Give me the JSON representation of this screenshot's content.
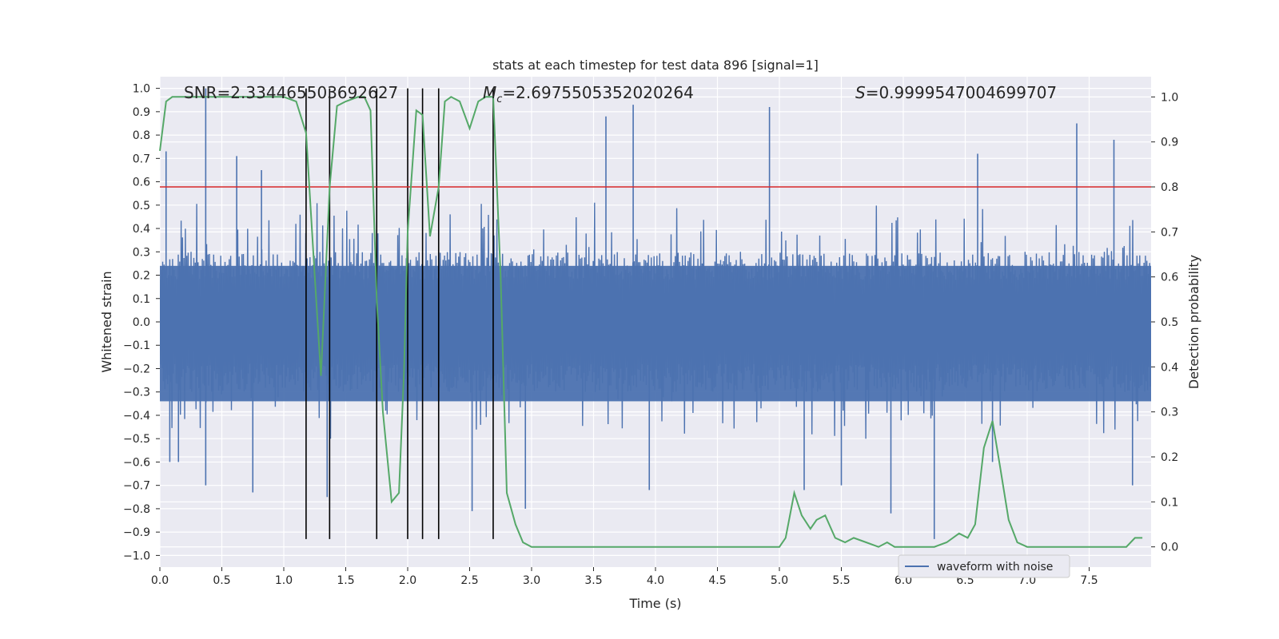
{
  "chart_data": {
    "type": "line",
    "title": "stats at each timestep for test data 896 [signal=1]",
    "xlabel": "Time (s)",
    "ylabel_left": "Whitened strain",
    "ylabel_right": "Detection probability",
    "xlim": [
      0.0,
      8.0
    ],
    "ylim_left": [
      -1.05,
      1.05
    ],
    "ylim_right": [
      -0.045,
      1.045
    ],
    "xticks": [
      0.0,
      0.5,
      1.0,
      1.5,
      2.0,
      2.5,
      3.0,
      3.5,
      4.0,
      4.5,
      5.0,
      5.5,
      6.0,
      6.5,
      7.0,
      7.5
    ],
    "xtick_labels": [
      "0.0",
      "0.5",
      "1.0",
      "1.5",
      "2.0",
      "2.5",
      "3.0",
      "3.5",
      "4.0",
      "4.5",
      "5.0",
      "5.5",
      "6.0",
      "6.5",
      "7.0",
      "7.5"
    ],
    "yticks_left": [
      1.0,
      0.9,
      0.8,
      0.7,
      0.6,
      0.5,
      0.4,
      0.3,
      0.2,
      0.1,
      0.0,
      -0.1,
      -0.2,
      -0.3,
      -0.4,
      -0.5,
      -0.6,
      -0.7,
      -0.8,
      -0.9,
      -1.0
    ],
    "ytick_labels_left": [
      "1.0",
      "0.9",
      "0.8",
      "0.7",
      "0.6",
      "0.5",
      "0.4",
      "0.3",
      "0.2",
      "0.1",
      "0.0",
      "−0.1",
      "−0.2",
      "−0.3",
      "−0.4",
      "−0.5",
      "−0.6",
      "−0.7",
      "−0.8",
      "−0.9",
      "−1.0"
    ],
    "yticks_right": [
      1.0,
      0.9,
      0.8,
      0.7,
      0.6,
      0.5,
      0.4,
      0.3,
      0.2,
      0.1,
      0.0
    ],
    "ytick_labels_right": [
      "1.0",
      "0.9",
      "0.8",
      "0.7",
      "0.6",
      "0.5",
      "0.4",
      "0.3",
      "0.2",
      "0.1",
      "0.0"
    ],
    "annotations": {
      "snr": "SNR=2.334465503692627",
      "mc_symbol": "M",
      "mc_sub": "c",
      "mc_value": "=2.6975505352020264",
      "s_symbol": "S",
      "s_value": "=0.9999547004699707"
    },
    "threshold": {
      "value": 0.8,
      "axis": "right",
      "color": "#d62728"
    },
    "event_markers_x": [
      1.18,
      1.37,
      1.75,
      2.0,
      2.12,
      2.25,
      2.69
    ],
    "event_marker_ylim": [
      -0.93,
      1.0
    ],
    "waveform": {
      "name": "waveform with noise",
      "color": "#4c72b0",
      "spikes": [
        {
          "x": 0.05,
          "y": 0.73
        },
        {
          "x": 0.08,
          "y": -0.6
        },
        {
          "x": 0.15,
          "y": -0.6
        },
        {
          "x": 0.37,
          "y": 1.0
        },
        {
          "x": 0.37,
          "y": -0.7
        },
        {
          "x": 0.62,
          "y": 0.71
        },
        {
          "x": 0.75,
          "y": -0.73
        },
        {
          "x": 0.82,
          "y": 0.65
        },
        {
          "x": 1.35,
          "y": -0.75
        },
        {
          "x": 2.52,
          "y": -0.81
        },
        {
          "x": 2.95,
          "y": -0.8
        },
        {
          "x": 3.6,
          "y": 0.88
        },
        {
          "x": 3.82,
          "y": 0.93
        },
        {
          "x": 3.95,
          "y": -0.72
        },
        {
          "x": 4.92,
          "y": 0.92
        },
        {
          "x": 5.2,
          "y": -0.72
        },
        {
          "x": 5.5,
          "y": -0.7
        },
        {
          "x": 5.9,
          "y": -0.82
        },
        {
          "x": 6.25,
          "y": -0.93
        },
        {
          "x": 6.6,
          "y": 0.72
        },
        {
          "x": 6.72,
          "y": -0.6
        },
        {
          "x": 7.4,
          "y": 0.85
        },
        {
          "x": 7.7,
          "y": 0.78
        },
        {
          "x": 7.85,
          "y": -0.7
        }
      ]
    },
    "detection_probability": {
      "color": "#55a868",
      "x": [
        0.0,
        0.05,
        0.1,
        0.2,
        0.4,
        0.6,
        0.8,
        1.0,
        1.1,
        1.18,
        1.25,
        1.3,
        1.37,
        1.43,
        1.5,
        1.6,
        1.65,
        1.7,
        1.75,
        1.8,
        1.87,
        1.93,
        1.97,
        2.0,
        2.07,
        2.12,
        2.18,
        2.25,
        2.3,
        2.35,
        2.42,
        2.5,
        2.57,
        2.63,
        2.69,
        2.75,
        2.8,
        2.87,
        2.93,
        3.0,
        3.2,
        3.4,
        3.6,
        3.8,
        4.0,
        4.3,
        4.6,
        4.9,
        5.0,
        5.05,
        5.12,
        5.18,
        5.25,
        5.3,
        5.37,
        5.45,
        5.53,
        5.6,
        5.7,
        5.8,
        5.87,
        5.93,
        6.0,
        6.07,
        6.15,
        6.25,
        6.35,
        6.45,
        6.52,
        6.58,
        6.65,
        6.72,
        6.78,
        6.85,
        6.92,
        7.0,
        7.2,
        7.5,
        7.75,
        7.8,
        7.87,
        7.93
      ],
      "y": [
        0.88,
        0.99,
        1.0,
        1.0,
        1.0,
        1.0,
        1.0,
        1.0,
        0.99,
        0.92,
        0.6,
        0.38,
        0.8,
        0.98,
        0.99,
        1.0,
        1.0,
        0.97,
        0.55,
        0.3,
        0.1,
        0.12,
        0.39,
        0.7,
        0.97,
        0.96,
        0.69,
        0.8,
        0.99,
        1.0,
        0.99,
        0.93,
        0.99,
        1.0,
        1.0,
        0.6,
        0.12,
        0.05,
        0.01,
        0.0,
        0.0,
        0.0,
        0.0,
        0.0,
        0.0,
        0.0,
        0.0,
        0.0,
        0.0,
        0.02,
        0.12,
        0.07,
        0.04,
        0.06,
        0.07,
        0.02,
        0.01,
        0.02,
        0.01,
        0.0,
        0.01,
        0.0,
        0.0,
        0.0,
        0.0,
        0.0,
        0.01,
        0.03,
        0.02,
        0.05,
        0.22,
        0.28,
        0.18,
        0.06,
        0.01,
        0.0,
        0.0,
        0.0,
        0.0,
        0.0,
        0.02,
        0.02
      ]
    },
    "legend": {
      "entries": [
        "waveform with noise"
      ],
      "placement": "lower-right"
    }
  }
}
